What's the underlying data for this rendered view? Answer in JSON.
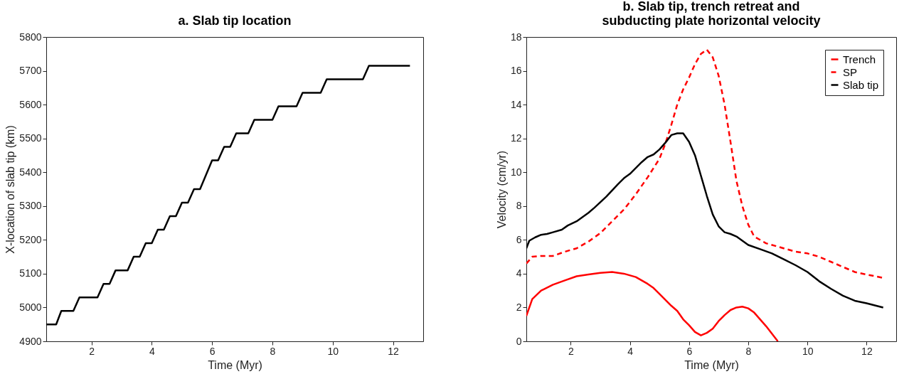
{
  "chart_data": [
    {
      "type": "line",
      "title": "a. Slab tip location",
      "xlabel": "Time (Myr)",
      "ylabel": "X-location of slab tip (km)",
      "xlim": [
        0.5,
        13
      ],
      "ylim": [
        4900,
        5800
      ],
      "xticks": [
        2,
        4,
        6,
        8,
        10,
        12
      ],
      "yticks": [
        4900,
        5000,
        5100,
        5200,
        5300,
        5400,
        5500,
        5600,
        5700,
        5800
      ],
      "grid": false,
      "marker": "none",
      "series": [
        {
          "color": "#000000",
          "x": [
            0.5,
            0.83,
            1.0,
            1.4,
            1.6,
            2.2,
            2.4,
            2.6,
            2.8,
            3.2,
            3.4,
            3.6,
            3.8,
            4.0,
            4.2,
            4.4,
            4.6,
            4.8,
            5.0,
            5.2,
            5.4,
            5.6,
            6.0,
            6.2,
            6.4,
            6.6,
            6.8,
            7.2,
            7.4,
            8.0,
            8.2,
            8.8,
            9.0,
            9.6,
            9.8,
            11.0,
            11.2,
            12.56
          ],
          "values": [
            4950,
            4950,
            4990,
            4990,
            5030,
            5030,
            5070,
            5070,
            5110,
            5110,
            5150,
            5150,
            5190,
            5190,
            5230,
            5230,
            5270,
            5270,
            5310,
            5310,
            5350,
            5350,
            5435,
            5435,
            5475,
            5475,
            5515,
            5515,
            5555,
            5555,
            5595,
            5595,
            5635,
            5635,
            5675,
            5675,
            5715,
            5715
          ]
        }
      ]
    },
    {
      "type": "line",
      "title": "b. Slab tip, trench retreat and subducting plate horizontal velocity",
      "xlabel": "Time (Myr)",
      "ylabel": "Velocity (cm/yr)",
      "xlim": [
        0.5,
        13
      ],
      "ylim": [
        0,
        18
      ],
      "xticks": [
        2,
        4,
        6,
        8,
        10,
        12
      ],
      "yticks": [
        0,
        2,
        4,
        6,
        8,
        10,
        12,
        14,
        16,
        18
      ],
      "grid": false,
      "legend": "top right",
      "marker": "none",
      "series": [
        {
          "name": "Trench",
          "color": "#ff0000",
          "line_style": "solid",
          "x": [
            0.5,
            0.7,
            1.0,
            1.4,
            1.8,
            2.2,
            2.6,
            3.0,
            3.4,
            3.8,
            4.2,
            4.6,
            4.8,
            5.0,
            5.4,
            5.6,
            5.8,
            6.0,
            6.2,
            6.4,
            6.6,
            6.8,
            7.0,
            7.2,
            7.4,
            7.6,
            7.8,
            8.0,
            8.2,
            8.4,
            8.6,
            8.8,
            9.0
          ],
          "values": [
            1.5,
            2.5,
            3.0,
            3.35,
            3.6,
            3.85,
            3.95,
            4.05,
            4.1,
            4.0,
            3.8,
            3.4,
            3.15,
            2.8,
            2.1,
            1.8,
            1.3,
            0.95,
            0.55,
            0.35,
            0.5,
            0.75,
            1.2,
            1.55,
            1.85,
            2.0,
            2.05,
            1.95,
            1.7,
            1.3,
            0.9,
            0.45,
            0.0
          ]
        },
        {
          "name": "SP",
          "color": "#ff0000",
          "line_style": "dashed",
          "x": [
            0.5,
            0.7,
            1.0,
            1.4,
            1.8,
            2.2,
            2.6,
            3.0,
            3.4,
            3.8,
            4.2,
            4.6,
            5.0,
            5.2,
            5.4,
            5.6,
            5.8,
            6.0,
            6.2,
            6.4,
            6.6,
            6.8,
            7.0,
            7.2,
            7.4,
            7.6,
            7.8,
            8.0,
            8.2,
            8.6,
            9.0,
            9.6,
            10.0,
            10.4,
            10.8,
            11.2,
            11.6,
            12.0,
            12.56
          ],
          "values": [
            4.6,
            5.0,
            5.05,
            5.05,
            5.3,
            5.5,
            5.9,
            6.4,
            7.1,
            7.8,
            8.7,
            9.7,
            10.8,
            11.7,
            12.8,
            14.0,
            14.9,
            15.6,
            16.4,
            17.0,
            17.25,
            16.8,
            15.7,
            14.0,
            11.8,
            9.5,
            8.0,
            6.9,
            6.2,
            5.8,
            5.6,
            5.3,
            5.2,
            5.0,
            4.7,
            4.4,
            4.1,
            3.95,
            3.75
          ]
        },
        {
          "name": "Slab tip",
          "color": "#000000",
          "line_style": "solid",
          "x": [
            0.5,
            0.6,
            0.8,
            1.0,
            1.2,
            1.4,
            1.7,
            1.9,
            2.2,
            2.6,
            2.8,
            3.2,
            3.6,
            3.8,
            4.0,
            4.4,
            4.6,
            4.8,
            5.0,
            5.2,
            5.4,
            5.6,
            5.8,
            6.0,
            6.2,
            6.4,
            6.6,
            6.8,
            7.0,
            7.2,
            7.4,
            7.6,
            7.8,
            8.0,
            8.4,
            8.8,
            9.2,
            9.6,
            10.0,
            10.4,
            10.8,
            11.2,
            11.6,
            12.0,
            12.56
          ],
          "values": [
            5.5,
            5.95,
            6.15,
            6.3,
            6.35,
            6.45,
            6.6,
            6.85,
            7.1,
            7.6,
            7.9,
            8.55,
            9.3,
            9.65,
            9.9,
            10.6,
            10.9,
            11.05,
            11.35,
            11.75,
            12.2,
            12.3,
            12.3,
            11.8,
            11.0,
            9.8,
            8.6,
            7.5,
            6.8,
            6.45,
            6.35,
            6.2,
            5.95,
            5.7,
            5.45,
            5.2,
            4.85,
            4.5,
            4.1,
            3.55,
            3.1,
            2.7,
            2.4,
            2.25,
            2.0
          ]
        }
      ]
    }
  ]
}
